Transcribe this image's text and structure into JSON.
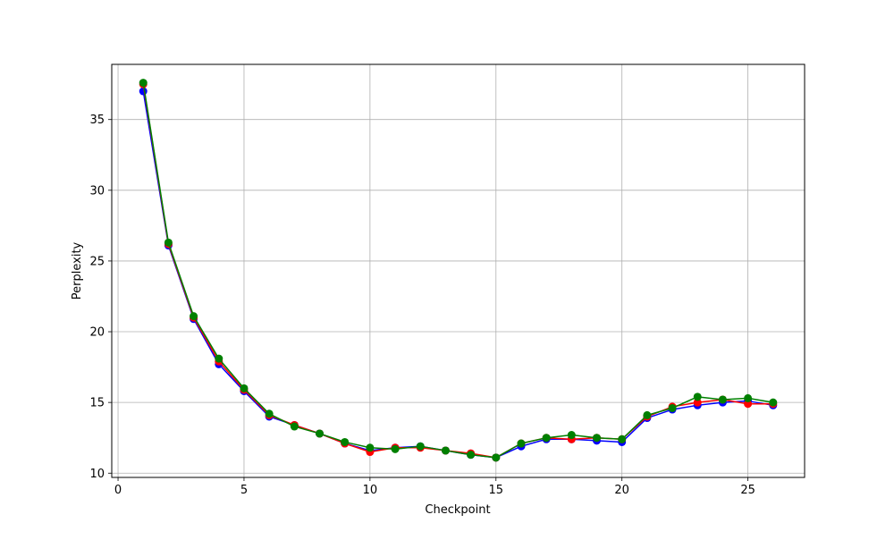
{
  "chart_data": {
    "type": "line",
    "title": "",
    "xlabel": "Checkpoint",
    "ylabel": "Perplexity",
    "xlim": [
      -0.25,
      27.25
    ],
    "ylim": [
      9.7,
      38.9
    ],
    "xticks": [
      0,
      5,
      10,
      15,
      20,
      25
    ],
    "yticks": [
      10,
      15,
      20,
      25,
      30,
      35
    ],
    "grid": true,
    "legend": "none",
    "x": [
      1,
      2,
      3,
      4,
      5,
      6,
      7,
      8,
      9,
      10,
      11,
      12,
      13,
      14,
      15,
      16,
      17,
      18,
      19,
      20,
      21,
      22,
      23,
      24,
      25,
      26
    ],
    "series": [
      {
        "color": "#0000ff",
        "values": [
          37.0,
          26.1,
          20.9,
          17.7,
          15.8,
          14.0,
          13.4,
          12.8,
          12.1,
          11.6,
          11.8,
          11.9,
          11.6,
          11.3,
          11.1,
          11.9,
          12.4,
          12.4,
          12.3,
          12.2,
          13.9,
          14.5,
          14.8,
          15.0,
          15.1,
          14.8
        ]
      },
      {
        "color": "#ff0000",
        "values": [
          37.5,
          26.2,
          21.0,
          17.9,
          15.9,
          14.1,
          13.4,
          12.8,
          12.1,
          11.5,
          11.8,
          11.8,
          11.6,
          11.4,
          11.1,
          12.1,
          12.5,
          12.4,
          12.5,
          12.4,
          14.0,
          14.7,
          15.0,
          15.2,
          14.9,
          14.9
        ]
      },
      {
        "color": "#008000",
        "values": [
          37.6,
          26.3,
          21.1,
          18.1,
          16.0,
          14.2,
          13.3,
          12.8,
          12.2,
          11.8,
          11.7,
          11.9,
          11.6,
          11.3,
          11.1,
          12.1,
          12.5,
          12.7,
          12.5,
          12.4,
          14.1,
          14.6,
          15.4,
          15.2,
          15.3,
          15.0
        ]
      }
    ]
  }
}
